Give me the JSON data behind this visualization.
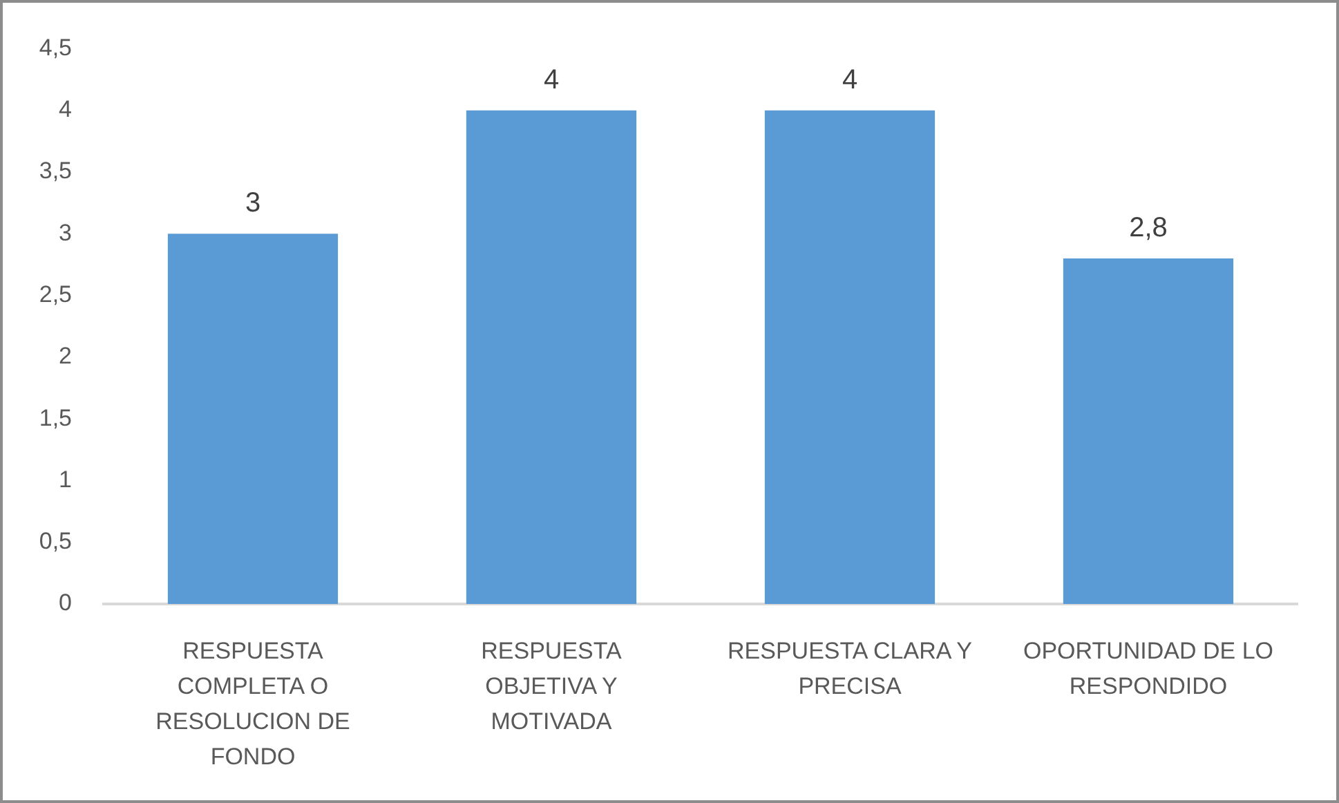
{
  "chart_data": {
    "type": "bar",
    "categories": [
      "RESPUESTA COMPLETA O RESOLUCION DE FONDO",
      "RESPUESTA OBJETIVA Y MOTIVADA",
      "RESPUESTA CLARA Y PRECISA",
      "OPORTUNIDAD DE LO RESPONDIDO"
    ],
    "values": [
      3,
      4,
      4,
      2.8
    ],
    "color": "#5b9bd5",
    "value_labels": [
      "3",
      "4",
      "4",
      "2,8"
    ],
    "ylim": [
      0,
      4.5
    ],
    "yticks": [
      0,
      {
        "value": 0.5,
        "label": "0,5"
      },
      1,
      {
        "value": 1.5,
        "label": "1,5"
      },
      2,
      {
        "value": 2.5,
        "label": "2,5"
      },
      3,
      {
        "value": 3.5,
        "label": "3,5"
      },
      4,
      {
        "value": 4.5,
        "label": "4,5"
      }
    ],
    "grid": false,
    "legend": false
  }
}
